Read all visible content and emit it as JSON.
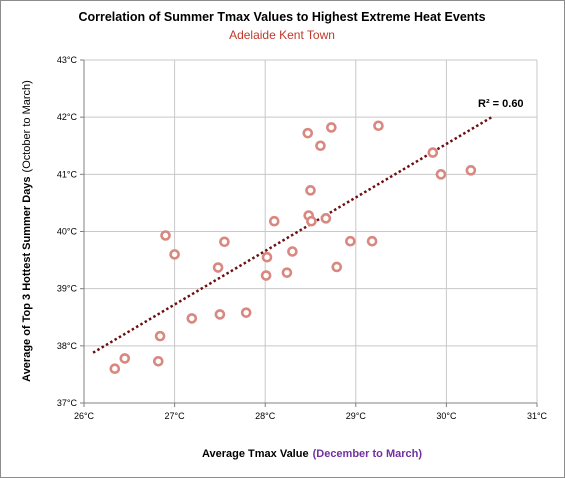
{
  "chart_data": {
    "type": "scatter",
    "title": "Correlation of Summer Tmax Values to Highest Extreme Heat Events",
    "subtitle": "Adelaide Kent Town",
    "xlabel": "Average Tmax  Value",
    "xlabel_note": "(December to March)",
    "ylabel": "Average of Top 3 Hottest Summer Days",
    "ylabel_note": "(October to March)",
    "xlim": [
      26,
      31
    ],
    "ylim": [
      37,
      43
    ],
    "x_ticks": [
      "26°C",
      "27°C",
      "28°C",
      "29°C",
      "30°C",
      "31°C"
    ],
    "y_ticks": [
      "37°C",
      "38°C",
      "39°C",
      "40°C",
      "41°C",
      "42°C",
      "43°C"
    ],
    "grid": true,
    "marker_color": "#d98880",
    "trendline_color": "#6b1010",
    "trendline": {
      "x": [
        26.1,
        30.5
      ],
      "y": [
        37.88,
        42.0
      ],
      "label": "R² = 0.60"
    },
    "points": [
      {
        "x": 26.34,
        "y": 37.6
      },
      {
        "x": 26.45,
        "y": 37.78
      },
      {
        "x": 26.82,
        "y": 37.73
      },
      {
        "x": 26.84,
        "y": 38.17
      },
      {
        "x": 26.9,
        "y": 39.93
      },
      {
        "x": 27.0,
        "y": 39.6
      },
      {
        "x": 27.19,
        "y": 38.48
      },
      {
        "x": 27.48,
        "y": 39.37
      },
      {
        "x": 27.5,
        "y": 38.55
      },
      {
        "x": 27.55,
        "y": 39.82
      },
      {
        "x": 27.79,
        "y": 38.58
      },
      {
        "x": 28.01,
        "y": 39.23
      },
      {
        "x": 28.02,
        "y": 39.55
      },
      {
        "x": 28.1,
        "y": 40.18
      },
      {
        "x": 28.24,
        "y": 39.28
      },
      {
        "x": 28.3,
        "y": 39.65
      },
      {
        "x": 28.47,
        "y": 41.72
      },
      {
        "x": 28.48,
        "y": 40.28
      },
      {
        "x": 28.5,
        "y": 40.72
      },
      {
        "x": 28.51,
        "y": 40.18
      },
      {
        "x": 28.61,
        "y": 41.5
      },
      {
        "x": 28.67,
        "y": 40.23
      },
      {
        "x": 28.73,
        "y": 41.82
      },
      {
        "x": 28.79,
        "y": 39.38
      },
      {
        "x": 28.94,
        "y": 39.83
      },
      {
        "x": 29.18,
        "y": 39.83
      },
      {
        "x": 29.25,
        "y": 41.85
      },
      {
        "x": 29.85,
        "y": 41.38
      },
      {
        "x": 29.94,
        "y": 41.0
      },
      {
        "x": 30.27,
        "y": 41.07
      }
    ]
  }
}
